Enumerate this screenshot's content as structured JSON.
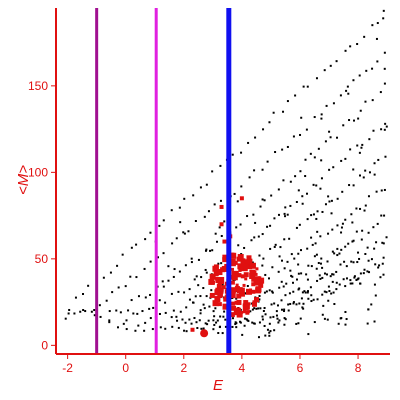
{
  "chart_data": {
    "type": "scatter",
    "title": "",
    "xlabel": "E",
    "ylabel": "<M>",
    "xlim": [
      -2.4,
      9.1
    ],
    "ylim": [
      -5,
      195
    ],
    "xticks": [
      -2,
      0,
      2,
      4,
      6,
      8
    ],
    "yticks": [
      0,
      50,
      100,
      150
    ],
    "grid": false,
    "legend": "none",
    "colors": {
      "axes": "#e01010",
      "points": "#000000",
      "highlight": "#e01010",
      "line_purple": "#a01090",
      "line_magenta": "#e020e0",
      "line_blue": "#1010f0"
    },
    "vertical_lines": [
      {
        "x": -1.0,
        "color": "#a01090"
      },
      {
        "x": 1.05,
        "color": "#e020e0"
      },
      {
        "x": 3.55,
        "color": "#1010f0"
      }
    ],
    "series": [
      {
        "kind": "bands",
        "color": "#000000",
        "bands": [
          {
            "x0": -2.0,
            "y0": 22,
            "x1": 8.9,
            "y1": 192,
            "curve": 1.0
          },
          {
            "x0": -1.4,
            "y0": 20,
            "x1": 8.9,
            "y1": 170,
            "curve": 1.1
          },
          {
            "x0": -0.6,
            "y0": 18,
            "x1": 8.9,
            "y1": 150,
            "curve": 1.2
          },
          {
            "x0": 0.0,
            "y0": 16,
            "x1": 8.9,
            "y1": 130,
            "curve": 1.25
          },
          {
            "x0": 0.6,
            "y0": 14,
            "x1": 8.9,
            "y1": 110,
            "curve": 1.3
          },
          {
            "x0": 1.2,
            "y0": 12,
            "x1": 8.9,
            "y1": 92,
            "curve": 1.35
          },
          {
            "x0": 1.8,
            "y0": 10,
            "x1": 8.9,
            "y1": 76,
            "curve": 1.4
          },
          {
            "x0": 2.4,
            "y0": 10,
            "x1": 8.9,
            "y1": 62,
            "curve": 1.45
          },
          {
            "x0": 3.0,
            "y0": 10,
            "x1": 8.9,
            "y1": 50,
            "curve": 1.5
          }
        ]
      },
      {
        "kind": "loop",
        "color": "#000000",
        "points": [
          [
            -2.1,
            16
          ],
          [
            -1.8,
            19
          ],
          [
            -1.5,
            21
          ],
          [
            -1.2,
            20
          ],
          [
            -0.9,
            17
          ],
          [
            -0.6,
            14
          ],
          [
            -0.3,
            11
          ],
          [
            0.0,
            10
          ],
          [
            0.3,
            9
          ],
          [
            0.6,
            9
          ],
          [
            0.9,
            10
          ],
          [
            0.4,
            12
          ],
          [
            -0.1,
            13
          ],
          [
            -0.6,
            15
          ],
          [
            -1.1,
            18
          ],
          [
            -1.6,
            20
          ],
          [
            -2.0,
            19
          ]
        ]
      },
      {
        "kind": "cluster",
        "color": "#e01010",
        "center": [
          3.8,
          35
        ],
        "spread": [
          0.9,
          18
        ],
        "count": 150,
        "extra_points": [
          [
            2.7,
            7
          ],
          [
            2.3,
            9
          ],
          [
            3.3,
            70
          ],
          [
            3.4,
            60
          ],
          [
            3.6,
            63
          ],
          [
            4.0,
            85
          ],
          [
            3.3,
            80
          ]
        ]
      }
    ]
  }
}
